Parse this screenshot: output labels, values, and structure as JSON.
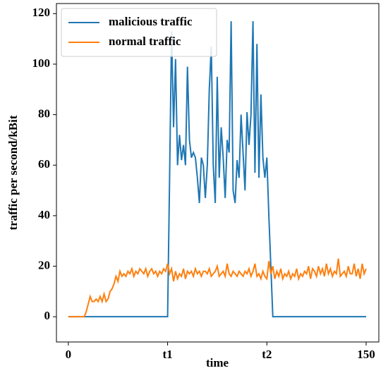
{
  "chart_data": {
    "type": "line",
    "xlabel": "time",
    "ylabel": "traffic per second/kBit",
    "x": [
      0,
      1,
      2,
      3,
      4,
      5,
      6,
      7,
      8,
      9,
      10,
      11,
      12,
      13,
      14,
      15,
      16,
      17,
      18,
      19,
      20,
      21,
      22,
      23,
      24,
      25,
      26,
      27,
      28,
      29,
      30,
      31,
      32,
      33,
      34,
      35,
      36,
      37,
      38,
      39,
      40,
      41,
      42,
      43,
      44,
      45,
      46,
      47,
      48,
      49,
      50,
      51,
      52,
      53,
      54,
      55,
      56,
      57,
      58,
      59,
      60,
      61,
      62,
      63,
      64,
      65,
      66,
      67,
      68,
      69,
      70,
      71,
      72,
      73,
      74,
      75,
      76,
      77,
      78,
      79,
      80,
      81,
      82,
      83,
      84,
      85,
      86,
      87,
      88,
      89,
      90,
      91,
      92,
      93,
      94,
      95,
      96,
      97,
      98,
      99,
      100,
      101,
      102,
      103,
      104,
      105,
      106,
      107,
      108,
      109,
      110,
      111,
      112,
      113,
      114,
      115,
      116,
      117,
      118,
      119,
      120,
      121,
      122,
      123,
      124,
      125,
      126,
      127,
      128,
      129,
      130,
      131,
      132,
      133,
      134,
      135,
      136,
      137,
      138,
      139,
      140,
      141,
      142,
      143,
      144,
      145,
      146,
      147,
      148,
      149,
      150
    ],
    "series": [
      {
        "name": "malicious traffic",
        "color": "#1f77b4",
        "values": [
          0,
          0,
          0,
          0,
          0,
          0,
          0,
          0,
          0,
          0,
          0,
          0,
          0,
          0,
          0,
          0,
          0,
          0,
          0,
          0,
          0,
          0,
          0,
          0,
          0,
          0,
          0,
          0,
          0,
          0,
          0,
          0,
          0,
          0,
          0,
          0,
          0,
          0,
          0,
          0,
          0,
          0,
          0,
          0,
          0,
          0,
          0,
          0,
          0,
          0,
          0,
          55,
          113,
          75,
          102,
          60,
          72,
          62,
          68,
          60,
          99,
          70,
          63,
          65,
          63,
          55,
          45,
          63,
          60,
          47,
          60,
          90,
          107,
          60,
          45,
          95,
          55,
          75,
          63,
          47,
          70,
          65,
          117,
          50,
          45,
          62,
          55,
          80,
          65,
          50,
          81,
          68,
          80,
          117,
          57,
          108,
          55,
          88,
          63,
          55,
          63,
          40,
          20,
          0,
          0,
          0,
          0,
          0,
          0,
          0,
          0,
          0,
          0,
          0,
          0,
          0,
          0,
          0,
          0,
          0,
          0,
          0,
          0,
          0,
          0,
          0,
          0,
          0,
          0,
          0,
          0,
          0,
          0,
          0,
          0,
          0,
          0,
          0,
          0,
          0,
          0,
          0,
          0,
          0,
          0,
          0,
          0,
          0,
          0,
          0,
          0
        ]
      },
      {
        "name": "normal traffic",
        "color": "#ff7f0e",
        "values": [
          0,
          0,
          0,
          0,
          0,
          0,
          0,
          0,
          0,
          2,
          5,
          8,
          6,
          6,
          7,
          6,
          8,
          6,
          9,
          6,
          7,
          10,
          11,
          13,
          16,
          14,
          18,
          16,
          17,
          16,
          18,
          17,
          19,
          16,
          18,
          17,
          19,
          18,
          17,
          19,
          16,
          18,
          19,
          17,
          18,
          16,
          18,
          17,
          19,
          18,
          21,
          17,
          19,
          14,
          18,
          15,
          17,
          16,
          19,
          15,
          18,
          17,
          18,
          16,
          19,
          17,
          18,
          16,
          18,
          18,
          17,
          19,
          16,
          17,
          18,
          20,
          16,
          17,
          18,
          16,
          21,
          17,
          16,
          18,
          17,
          16,
          18,
          17,
          16,
          18,
          17,
          19,
          16,
          18,
          21,
          16,
          17,
          15,
          18,
          16,
          15,
          22,
          17,
          20,
          15,
          18,
          16,
          19,
          15,
          17,
          16,
          18,
          15,
          17,
          16,
          19,
          15,
          17,
          16,
          18,
          17,
          20,
          15,
          19,
          18,
          16,
          20,
          17,
          19,
          16,
          21,
          17,
          19,
          16,
          18,
          17,
          23,
          16,
          17,
          18,
          16,
          20,
          17,
          17,
          21,
          16,
          19,
          15,
          21,
          17,
          19
        ]
      }
    ],
    "xlim": [
      -6,
      156.4
    ],
    "ylim": [
      -10,
      124
    ],
    "xticks": [
      0,
      {
        "value": 50,
        "label": "t1"
      },
      {
        "value": 100,
        "label": "t2"
      },
      150
    ],
    "yticks": [
      0,
      20,
      40,
      60,
      80,
      100,
      120
    ],
    "legend": "upper left"
  }
}
